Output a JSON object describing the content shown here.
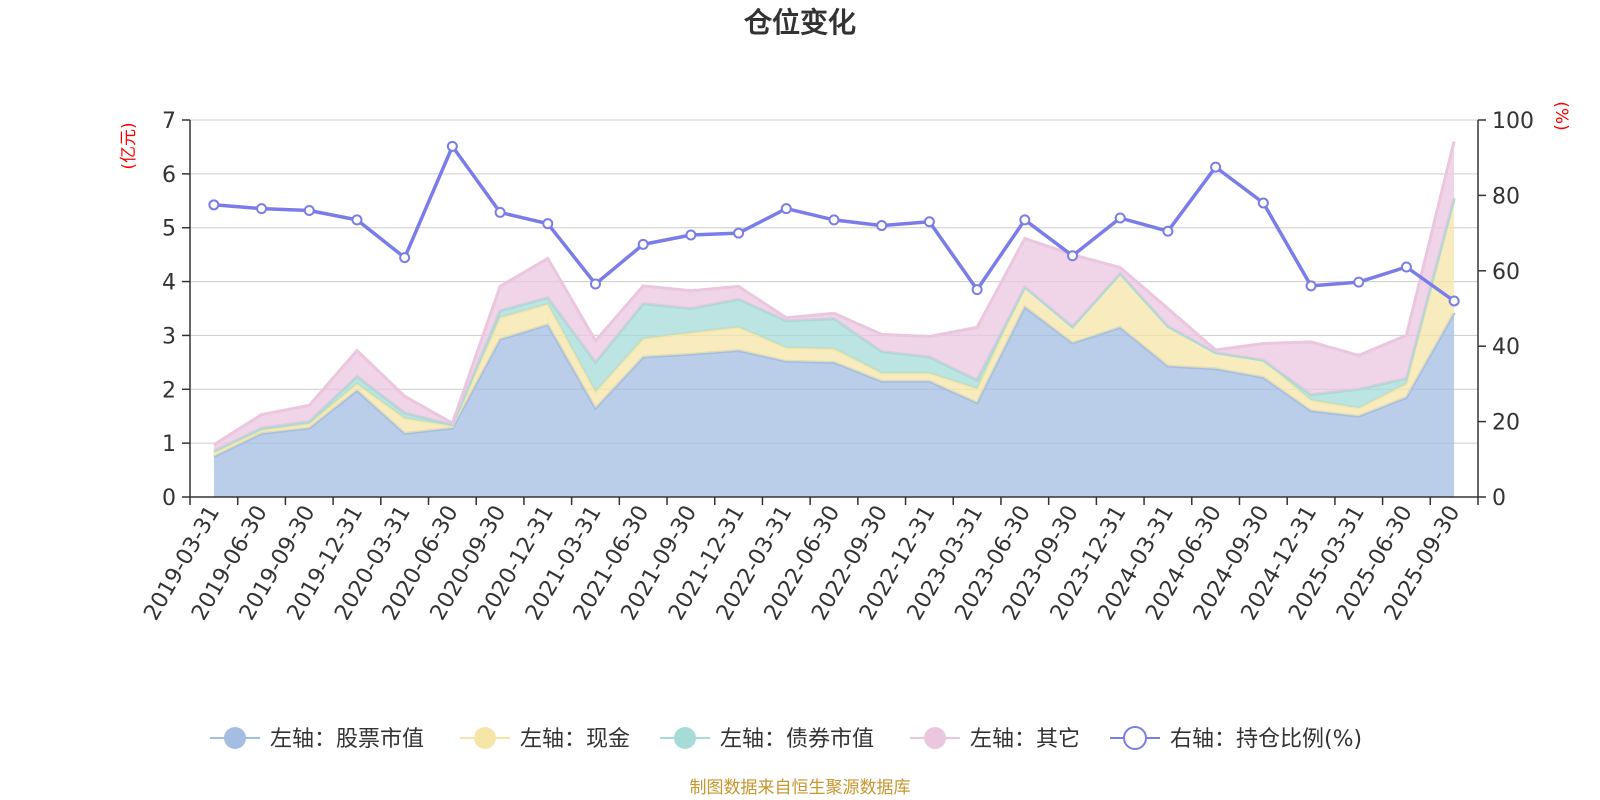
{
  "chart_data": {
    "type": "area",
    "title": "仓位变化",
    "source": "制图数据来自恒生聚源数据库",
    "left_axis": {
      "unit_label": "(亿元)",
      "range": [
        0,
        7
      ],
      "ticks": [
        0,
        1,
        2,
        3,
        4,
        5,
        6,
        7
      ]
    },
    "right_axis": {
      "unit_label": "(%)",
      "range": [
        0,
        100
      ],
      "ticks": [
        0,
        20,
        40,
        60,
        80,
        100
      ]
    },
    "categories": [
      "2019-03-31",
      "2019-06-30",
      "2019-09-30",
      "2019-12-31",
      "2020-03-31",
      "2020-06-30",
      "2020-09-30",
      "2020-12-31",
      "2021-03-31",
      "2021-06-30",
      "2021-09-30",
      "2021-12-31",
      "2022-03-31",
      "2022-06-30",
      "2022-09-30",
      "2022-12-31",
      "2023-03-31",
      "2023-06-30",
      "2023-09-30",
      "2023-12-31",
      "2024-03-31",
      "2024-06-30",
      "2024-09-30",
      "2024-12-31",
      "2025-03-31",
      "2025-06-30",
      "2025-09-30"
    ],
    "stacked_series": [
      {
        "name": "左轴：股票市值",
        "axis": "left",
        "color": "#a3bde3",
        "values": [
          0.75,
          1.18,
          1.28,
          1.98,
          1.18,
          1.28,
          2.93,
          3.2,
          1.65,
          2.6,
          2.65,
          2.72,
          2.52,
          2.5,
          2.15,
          2.15,
          1.75,
          3.53,
          2.86,
          3.15,
          2.43,
          2.38,
          2.22,
          1.6,
          1.5,
          1.85,
          3.42
        ]
      },
      {
        "name": "左轴：现金",
        "axis": "left",
        "color": "#f5e6a8",
        "values": [
          0.08,
          0.06,
          0.08,
          0.12,
          0.28,
          0.04,
          0.4,
          0.38,
          0.3,
          0.34,
          0.4,
          0.43,
          0.25,
          0.25,
          0.15,
          0.15,
          0.26,
          0.37,
          0.3,
          1.0,
          0.74,
          0.3,
          0.32,
          0.2,
          0.15,
          0.25,
          2.1
        ]
      },
      {
        "name": "左轴：债券市值",
        "axis": "left",
        "color": "#a6dbd8",
        "values": [
          0.02,
          0.04,
          0.04,
          0.14,
          0.1,
          0.02,
          0.13,
          0.12,
          0.55,
          0.65,
          0.45,
          0.52,
          0.5,
          0.56,
          0.4,
          0.3,
          0.16,
          0.0,
          0.0,
          0.0,
          0.0,
          0.0,
          0.0,
          0.1,
          0.35,
          0.1,
          0.03
        ]
      },
      {
        "name": "左轴：其它",
        "axis": "left",
        "color": "#ebc6df",
        "values": [
          0.12,
          0.25,
          0.3,
          0.48,
          0.31,
          0.03,
          0.45,
          0.73,
          0.4,
          0.33,
          0.33,
          0.24,
          0.06,
          0.1,
          0.32,
          0.38,
          0.98,
          0.9,
          1.34,
          0.11,
          0.33,
          0.05,
          0.31,
          0.98,
          0.63,
          0.8,
          1.05
        ]
      }
    ],
    "line_series": {
      "name": "右轴：持仓比例(%)",
      "axis": "right",
      "color": "#7a7de8",
      "values": [
        77.5,
        76.5,
        76,
        73.5,
        63.5,
        93,
        75.5,
        72.5,
        56.5,
        67,
        69.5,
        70,
        76.5,
        73.5,
        72,
        73,
        55,
        73.5,
        64,
        74,
        70.5,
        87.5,
        78,
        56,
        57,
        61,
        52
      ]
    },
    "legend": [
      "左轴：股票市值",
      "左轴：现金",
      "左轴：债券市值",
      "左轴：其它",
      "右轴：持仓比例(%)"
    ]
  }
}
